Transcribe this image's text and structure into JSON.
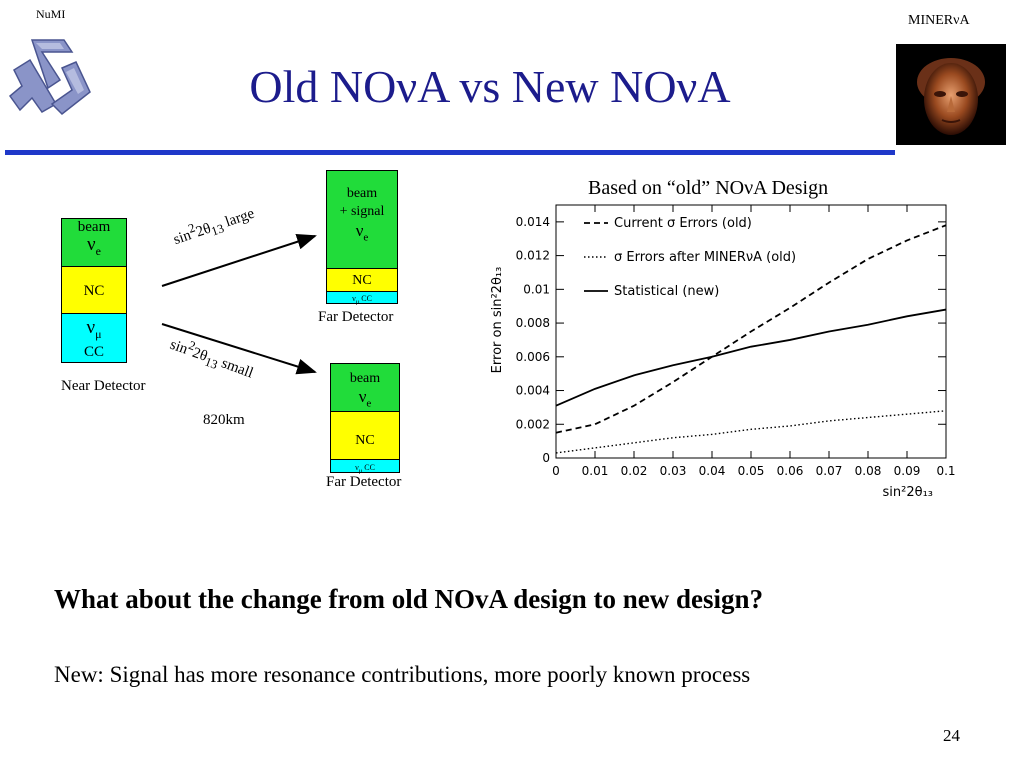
{
  "header": {
    "left_corner": "NuMI",
    "right_corner": "MINERνA",
    "title": "Old NOνA vs New NOνA",
    "left_logo_icon": "numi-logo-icon",
    "right_logo_icon": "minerva-face-logo-icon"
  },
  "diagram": {
    "near_detector": {
      "label": "Near Detector",
      "beam_label": "beam",
      "beam_nu": "ν",
      "beam_sub": "e",
      "nc": "NC",
      "numu_nu": "ν",
      "numu_sub": "μ",
      "numu_cc": "CC"
    },
    "arrow_large": {
      "prefix": "sin",
      "sup": "2",
      "theta": "2θ",
      "sub": "13",
      "suffix": "large"
    },
    "arrow_small": {
      "prefix": "sin",
      "sup": "2",
      "theta": "2θ",
      "sub": "13",
      "suffix": "small"
    },
    "distance": "820km",
    "far_detector_top": {
      "label": "Far Detector",
      "beam_label": "beam",
      "signal_label": "+ signal",
      "nu": "ν",
      "nu_sub": "e",
      "nc": "NC",
      "cc_nu": "ν",
      "cc_sub": "μ",
      "cc": "CC"
    },
    "far_detector_bottom": {
      "label": "Far Detector",
      "beam_label": "beam",
      "nu": "ν",
      "nu_sub": "e",
      "nc": "NC",
      "cc_nu": "ν",
      "cc_sub": "μ",
      "cc": "CC"
    }
  },
  "chart_caption": "Based on “old” NOνA Design",
  "chart_data": {
    "type": "line",
    "title": "",
    "xlabel": "sin²2θ₁₃",
    "ylabel": "Error on sin²2θ₁₃",
    "xlim": [
      0,
      0.1
    ],
    "ylim": [
      0,
      0.015
    ],
    "xticks": [
      "0",
      "0.01",
      "0.02",
      "0.03",
      "0.04",
      "0.05",
      "0.06",
      "0.07",
      "0.08",
      "0.09",
      "0.1"
    ],
    "yticks": [
      "0",
      "0.002",
      "0.004",
      "0.006",
      "0.008",
      "0.01",
      "0.012",
      "0.014"
    ],
    "grid": false,
    "legend_position": "top-left",
    "series": [
      {
        "name": "Current σ Errors (old)",
        "style": "dashed",
        "x": [
          0,
          0.01,
          0.02,
          0.03,
          0.04,
          0.05,
          0.06,
          0.07,
          0.08,
          0.09,
          0.1
        ],
        "y": [
          0.0015,
          0.002,
          0.0031,
          0.0045,
          0.006,
          0.0075,
          0.0089,
          0.0104,
          0.0118,
          0.0129,
          0.0138
        ]
      },
      {
        "name": "σ Errors after MINERνA (old)",
        "style": "dotted",
        "x": [
          0,
          0.01,
          0.02,
          0.03,
          0.04,
          0.05,
          0.06,
          0.07,
          0.08,
          0.09,
          0.1
        ],
        "y": [
          0.0003,
          0.0006,
          0.0009,
          0.0012,
          0.0014,
          0.0017,
          0.0019,
          0.0022,
          0.0024,
          0.0026,
          0.0028
        ]
      },
      {
        "name": "Statistical (new)",
        "style": "solid",
        "x": [
          0,
          0.01,
          0.02,
          0.03,
          0.04,
          0.05,
          0.06,
          0.07,
          0.08,
          0.09,
          0.1
        ],
        "y": [
          0.0031,
          0.0041,
          0.0049,
          0.0055,
          0.006,
          0.0066,
          0.007,
          0.0075,
          0.0079,
          0.0084,
          0.0088
        ]
      }
    ]
  },
  "body": {
    "question": "What about the change from old NOvA design to new design?",
    "new_line": "New:  Signal has more resonance contributions, more poorly known process"
  },
  "page_number": "24",
  "colors": {
    "title": "#1c1c8c",
    "rule": "#1f38c9",
    "beam_green": "#21dc3a",
    "nc_yellow": "#ffff00",
    "cc_cyan": "#00ffff"
  }
}
